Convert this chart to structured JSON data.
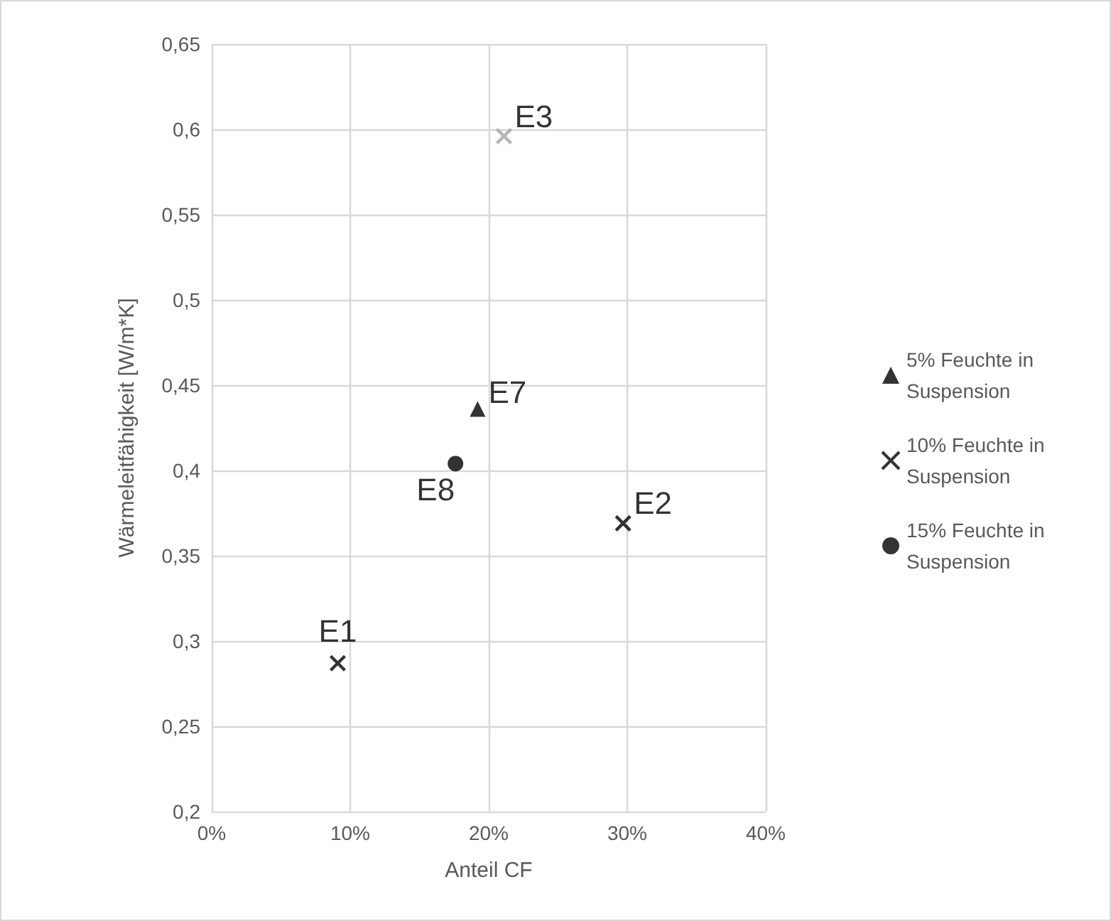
{
  "chart_data": {
    "type": "scatter",
    "xlabel": "Anteil CF",
    "ylabel": "Wärmeleitfähigkeit [W/m*K]",
    "xlim": [
      0,
      40
    ],
    "xticks": [
      {
        "value": 0,
        "label": "0%"
      },
      {
        "value": 10,
        "label": "10%"
      },
      {
        "value": 20,
        "label": "20%"
      },
      {
        "value": 30,
        "label": "30%"
      },
      {
        "value": 40,
        "label": "40%"
      }
    ],
    "ylim": [
      0.2,
      0.65
    ],
    "yticks": [
      {
        "value": 0.2,
        "label": "0,2"
      },
      {
        "value": 0.25,
        "label": "0,25"
      },
      {
        "value": 0.3,
        "label": "0,3"
      },
      {
        "value": 0.35,
        "label": "0,35"
      },
      {
        "value": 0.4,
        "label": "0,4"
      },
      {
        "value": 0.45,
        "label": "0,45"
      },
      {
        "value": 0.5,
        "label": "0,5"
      },
      {
        "value": 0.55,
        "label": "0,55"
      },
      {
        "value": 0.6,
        "label": "0,6"
      },
      {
        "value": 0.65,
        "label": "0,65"
      }
    ],
    "grid": true,
    "legend": "right",
    "series": [
      {
        "name": "5% Feuchte in Suspension",
        "color": "#000000",
        "marker": "triangle",
        "x": [
          19.2
        ],
        "values": [
          0.436
        ]
      },
      {
        "name": "10% Feuchte in Suspension",
        "color": "#000000",
        "marker": "cross",
        "x": [
          9.1,
          29.7
        ],
        "values": [
          0.287,
          0.369
        ]
      },
      {
        "name": "15% Feuchte in Suspension",
        "color": "#000000",
        "marker": "circle",
        "x": [
          17.6
        ],
        "values": [
          0.404
        ]
      },
      {
        "color": "#a5a5a5",
        "marker": "cross",
        "x": [
          21.1
        ],
        "values": [
          0.596
        ]
      }
    ],
    "annotations": [
      {
        "text": "E1",
        "x": 9.1,
        "y": 0.287
      },
      {
        "text": "E2",
        "x": 29.7,
        "y": 0.369
      },
      {
        "text": "E3",
        "x": 21.1,
        "y": 0.596
      },
      {
        "text": "E7",
        "x": 19.2,
        "y": 0.436
      },
      {
        "text": "E8",
        "x": 17.6,
        "y": 0.404
      }
    ]
  }
}
